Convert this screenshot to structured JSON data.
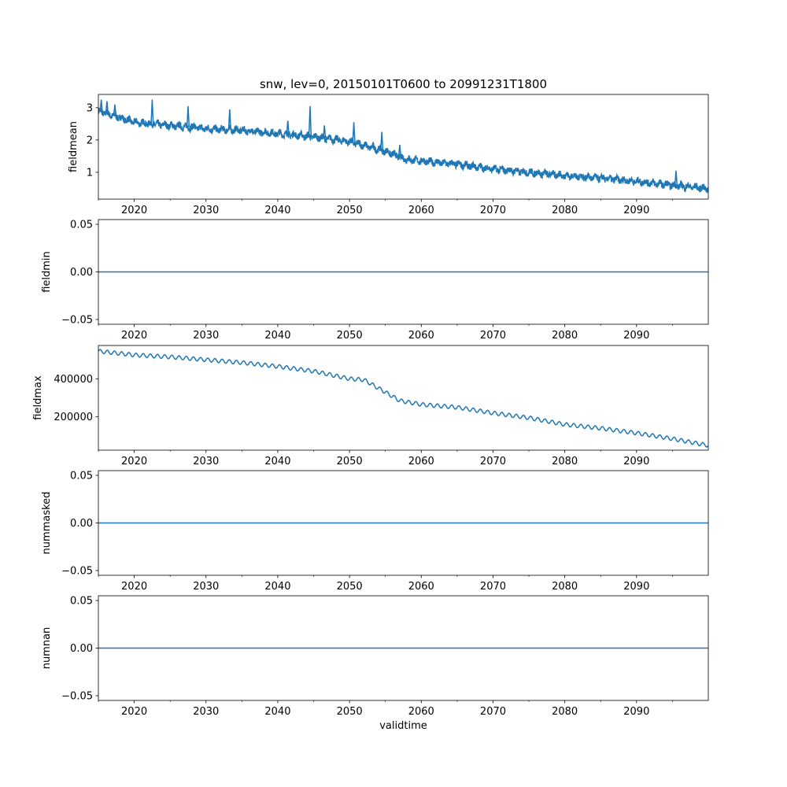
{
  "chart_data": [
    {
      "type": "line",
      "title": "snw, lev=0, 20150101T0600 to 20991231T1800",
      "ylabel": "fieldmean",
      "xlabel": "",
      "xlim": [
        2015,
        2100
      ],
      "ylim": [
        0.17,
        3.41
      ],
      "yticks": [
        1,
        2,
        3
      ],
      "ytick_labels": [
        "1",
        "2",
        "3"
      ],
      "trend_x": [
        2015,
        2020,
        2025,
        2030,
        2035,
        2040,
        2045,
        2050,
        2055,
        2058,
        2060,
        2065,
        2070,
        2075,
        2080,
        2085,
        2090,
        2095,
        2100
      ],
      "trend_y": [
        2.9,
        2.55,
        2.45,
        2.35,
        2.3,
        2.2,
        2.1,
        1.95,
        1.65,
        1.4,
        1.35,
        1.25,
        1.1,
        1.0,
        0.9,
        0.82,
        0.72,
        0.6,
        0.5
      ],
      "noise_band": 0.2,
      "spikes_x": [
        2015.4,
        2016.2,
        2017.3,
        2022.5,
        2027.5,
        2033.3,
        2041.4,
        2044.5,
        2046.5,
        2050.6,
        2054.5,
        2057.0,
        2095.5
      ],
      "spikes_y": [
        3.25,
        3.2,
        3.1,
        3.25,
        3.05,
        2.95,
        2.6,
        3.05,
        2.45,
        2.55,
        2.25,
        1.85,
        1.05
      ]
    },
    {
      "type": "line",
      "ylabel": "fieldmin",
      "xlabel": "",
      "xlim": [
        2015,
        2100
      ],
      "ylim": [
        -0.055,
        0.055
      ],
      "yticks": [
        -0.05,
        0,
        0.05
      ],
      "ytick_labels": [
        "−0.05",
        "0.00",
        "0.05"
      ],
      "trend_x": [
        2015,
        2100
      ],
      "trend_y": [
        0,
        0
      ]
    },
    {
      "type": "line",
      "ylabel": "fieldmax",
      "xlabel": "",
      "xlim": [
        2015,
        2100
      ],
      "ylim": [
        25000,
        575000
      ],
      "yticks": [
        200000,
        400000
      ],
      "ytick_labels": [
        "200000",
        "400000"
      ],
      "trend_x": [
        2015,
        2020,
        2025,
        2030,
        2035,
        2040,
        2045,
        2050,
        2052,
        2055,
        2057,
        2060,
        2065,
        2070,
        2075,
        2080,
        2085,
        2090,
        2095,
        2100
      ],
      "trend_y": [
        545000,
        525000,
        515000,
        500000,
        485000,
        465000,
        440000,
        400000,
        395000,
        330000,
        285000,
        265000,
        250000,
        220000,
        195000,
        160000,
        140000,
        115000,
        85000,
        50000
      ],
      "seasonal_amplitude": 10000
    },
    {
      "type": "line",
      "ylabel": "nummasked",
      "xlabel": "",
      "xlim": [
        2015,
        2100
      ],
      "ylim": [
        -0.055,
        0.055
      ],
      "yticks": [
        -0.05,
        0,
        0.05
      ],
      "ytick_labels": [
        "−0.05",
        "0.00",
        "0.05"
      ],
      "trend_x": [
        2015,
        2100
      ],
      "trend_y": [
        0,
        0
      ]
    },
    {
      "type": "line",
      "ylabel": "numnan",
      "xlabel": "validtime",
      "xlim": [
        2015,
        2100
      ],
      "ylim": [
        -0.055,
        0.055
      ],
      "yticks": [
        -0.05,
        0,
        0.05
      ],
      "ytick_labels": [
        "−0.05",
        "0.00",
        "0.05"
      ],
      "trend_x": [
        2015,
        2100
      ],
      "trend_y": [
        0,
        0
      ]
    }
  ],
  "xticks": [
    2020,
    2030,
    2040,
    2050,
    2060,
    2070,
    2080,
    2090
  ],
  "xtick_labels": [
    "2020",
    "2030",
    "2040",
    "2050",
    "2060",
    "2070",
    "2080",
    "2090"
  ],
  "line_color": "#1f77b4"
}
